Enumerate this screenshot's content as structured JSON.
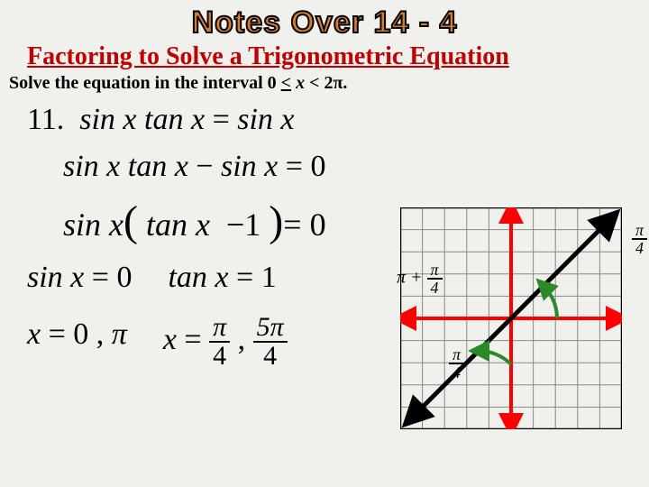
{
  "banner": "Notes Over 14 - 4",
  "subtitle": "Factoring to Solve a Trigonometric Equation",
  "instruction": "Solve the equation in the interval 0 ≤ x < 2π.",
  "problem_number": "11.",
  "eq1": "sin x tan x = sin x",
  "eq2": "sin x tan x − sin x = 0",
  "eq3_pre": "sin x",
  "eq3_in": "tan x  − 1",
  "eq3_post": "= 0",
  "branch1_eq": "sin x = 0",
  "branch2_eq": "tan x = 1",
  "sol1": "x = 0 , π",
  "sol2_pre": "x =",
  "frac1_top": "π",
  "frac1_bot": "4",
  "frac2_top": "5π",
  "frac2_bot": "4",
  "sol2_sep": ",",
  "labels": {
    "q1_top": "π",
    "q1_bot": "4",
    "q2_pre": "π +",
    "q2_top": "π",
    "q2_bot": "4",
    "q3_top": "π",
    "q3_bot": "4"
  },
  "colors": {
    "axis": "#ff0000",
    "diag": "#000000",
    "arc": "#2a8a2a",
    "grid": "#888888"
  },
  "graph": {
    "n_cells": 10
  }
}
